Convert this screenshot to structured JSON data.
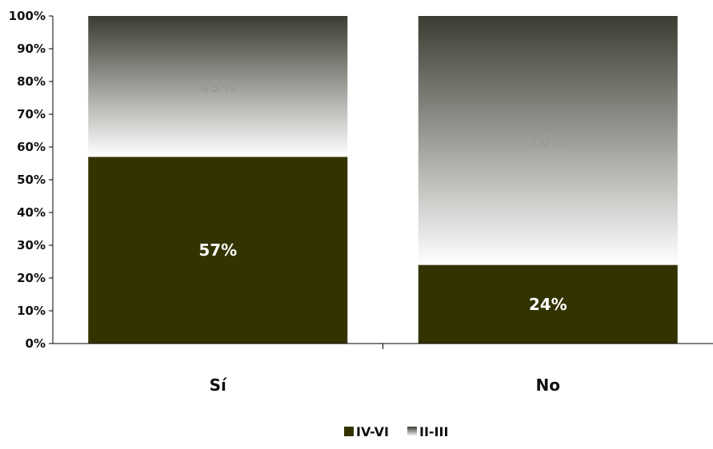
{
  "chart_data": {
    "type": "bar",
    "stacked": true,
    "percent": true,
    "categories": [
      "Sí",
      "No"
    ],
    "series": [
      {
        "name": "IV-VI",
        "values": [
          57,
          24
        ],
        "labels": [
          "57%",
          "24%"
        ],
        "color": "#333300"
      },
      {
        "name": "II-III",
        "values": [
          43,
          76
        ],
        "labels": [
          "43%",
          "76%"
        ],
        "color_light": "#ffffff",
        "color_dark": "#3c3c32"
      }
    ],
    "y_ticks": [
      "0%",
      "10%",
      "20%",
      "30%",
      "40%",
      "50%",
      "60%",
      "70%",
      "80%",
      "90%",
      "100%"
    ],
    "ylim": [
      0,
      100
    ],
    "grid": false,
    "legend_position": "bottom-center",
    "label_colors": {
      "dark_bar": "#ffffff",
      "light_bar": "#9a9a9a"
    }
  }
}
